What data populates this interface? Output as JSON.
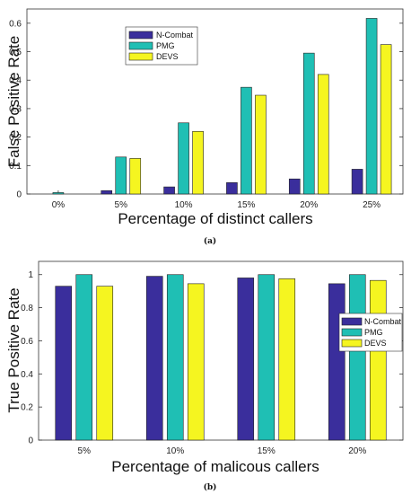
{
  "chart_data": [
    {
      "type": "bar",
      "caption": "(a)",
      "xlabel": "Percentage of distinct callers",
      "ylabel": "False Positive Rate",
      "categories": [
        "0%",
        "5%",
        "10%",
        "15%",
        "20%",
        "25%"
      ],
      "ylim": [
        0,
        0.65
      ],
      "yticks": [
        "0",
        "0.1",
        "0.2",
        "0.3",
        "0.4",
        "0.5",
        "0.6"
      ],
      "legend_position": "top-left",
      "series": [
        {
          "name": "N-Combat",
          "color": "#3a2e9c",
          "values": [
            0,
            0.012,
            0.025,
            0.04,
            0.053,
            0.087
          ]
        },
        {
          "name": "PMG",
          "color": "#1fbfb4",
          "values": [
            0.005,
            0.13,
            0.25,
            0.375,
            0.495,
            0.617
          ]
        },
        {
          "name": "DEVS",
          "color": "#f5f520",
          "values": [
            0,
            0.125,
            0.22,
            0.347,
            0.42,
            0.525
          ]
        }
      ]
    },
    {
      "type": "bar",
      "caption": "(b)",
      "xlabel": "Percentage of malicous callers",
      "ylabel": "True Positive Rate",
      "categories": [
        "5%",
        "10%",
        "15%",
        "20%"
      ],
      "ylim": [
        0,
        1.08
      ],
      "yticks": [
        "0",
        "0.2",
        "0.4",
        "0.6",
        "0.8",
        "1"
      ],
      "legend_position": "right",
      "series": [
        {
          "name": "N-Combat",
          "color": "#3a2e9c",
          "values": [
            0.93,
            0.99,
            0.98,
            0.945
          ]
        },
        {
          "name": "PMG",
          "color": "#1fbfb4",
          "values": [
            1.0,
            1.0,
            1.0,
            1.0
          ]
        },
        {
          "name": "DEVS",
          "color": "#f5f520",
          "values": [
            0.93,
            0.945,
            0.975,
            0.965
          ]
        }
      ]
    }
  ]
}
